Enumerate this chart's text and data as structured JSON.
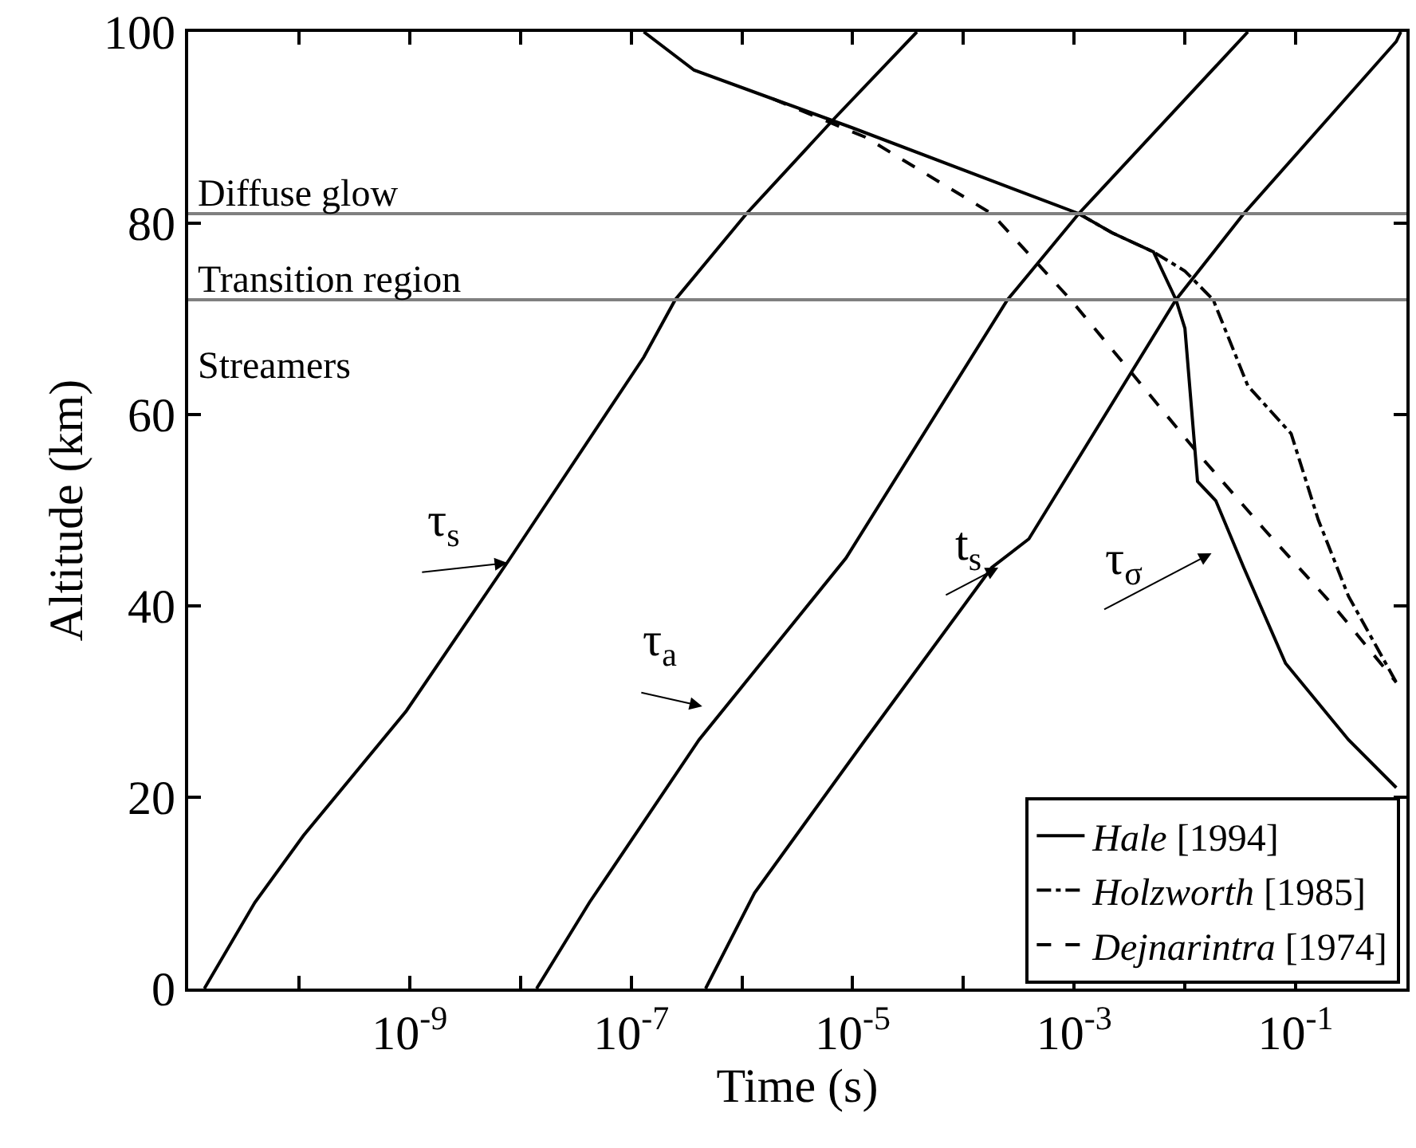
{
  "chart_data": {
    "type": "line",
    "xlabel": "Time (s)",
    "ylabel": "Altitude (km)",
    "log": "x",
    "xlim": [
      1e-11,
      1
    ],
    "ylim": [
      0,
      100
    ],
    "xticks": [
      {
        "value": 1e-10,
        "label": null
      },
      {
        "value": 1e-09,
        "label": "10$^{-9}$"
      },
      {
        "value": 1e-08,
        "label": null
      },
      {
        "value": 1e-07,
        "label": "10$^{-7}$"
      },
      {
        "value": 1e-06,
        "label": null
      },
      {
        "value": 1e-05,
        "label": "10$^{-5}$"
      },
      {
        "value": 0.0001,
        "label": null
      },
      {
        "value": 0.001,
        "label": "10$^{-3}$"
      },
      {
        "value": 0.01,
        "label": null
      },
      {
        "value": 0.1,
        "label": "10$^{-1}$"
      }
    ],
    "yticks": [
      0,
      20,
      40,
      60,
      80,
      100
    ],
    "legend": "bottom right",
    "series": [
      {
        "color": "#000000",
        "line_style": "solid",
        "x": [
          1.4e-11,
          4e-11,
          1.1e-10,
          9.3e-10,
          8.1e-09,
          1.3e-07,
          2.5e-07,
          1.1e-06,
          6.9e-06,
          3.8e-05
        ],
        "values": [
          0,
          9,
          16,
          29,
          45,
          66,
          72,
          81,
          91,
          100
        ]
      },
      {
        "color": "#000000",
        "line_style": "solid",
        "x": [
          1.4e-08,
          4.2e-08,
          4.1e-07,
          8.7e-06,
          0.00025,
          0.0011,
          0.037
        ],
        "values": [
          0,
          9,
          26,
          45,
          72,
          81,
          100
        ]
      },
      {
        "color": "#000000",
        "line_style": "solid",
        "x": [
          4.7e-07,
          1.3e-06,
          1.3e-05,
          0.00018,
          0.00039,
          0.0083,
          0.034,
          0.81,
          0.89
        ],
        "values": [
          0,
          10,
          26,
          44,
          47,
          72,
          81,
          99,
          100
        ]
      },
      {
        "name": "Hale [1994]",
        "color": "#000000",
        "line_style": "solid",
        "x": [
          1.3e-07,
          3.7e-07,
          1.9e-06,
          9.8e-06,
          0.0011,
          0.0022,
          0.0052,
          0.0083,
          0.01,
          0.013,
          0.019,
          0.034,
          0.081,
          0.3,
          0.81
        ],
        "values": [
          100,
          96,
          93,
          90,
          81,
          79,
          77,
          72,
          69,
          53,
          51,
          44,
          34,
          26,
          21
        ]
      },
      {
        "name": "Holzworth [1985]",
        "color": "#000000",
        "line_style": "dashdot",
        "x": [
          0.0011,
          0.0022,
          0.0052,
          0.01,
          0.018,
          0.037,
          0.091,
          0.16,
          0.3,
          0.81
        ],
        "values": [
          81,
          79,
          77,
          75,
          72,
          63,
          58,
          49,
          41,
          32
        ]
      },
      {
        "name": "Dejnarintra [1974]",
        "color": "#000000",
        "line_style": "dashed",
        "x": [
          1.9e-06,
          1.3e-05,
          0.00018,
          0.00093,
          0.0035,
          0.013,
          0.052,
          0.22,
          0.81
        ],
        "values": [
          93,
          89,
          81,
          72,
          64,
          56,
          48,
          40,
          32
        ]
      }
    ],
    "ref_lines": [
      {
        "axis": "y",
        "value": 81,
        "color": "#808080"
      },
      {
        "axis": "y",
        "value": 72,
        "color": "#808080"
      }
    ],
    "annotations": [
      "Diffuse glow",
      "Transition region",
      "Streamers",
      "τ$_{s}$",
      "τ$_{a}$",
      "t$_{s}$",
      "τ$_{σ}$"
    ]
  }
}
